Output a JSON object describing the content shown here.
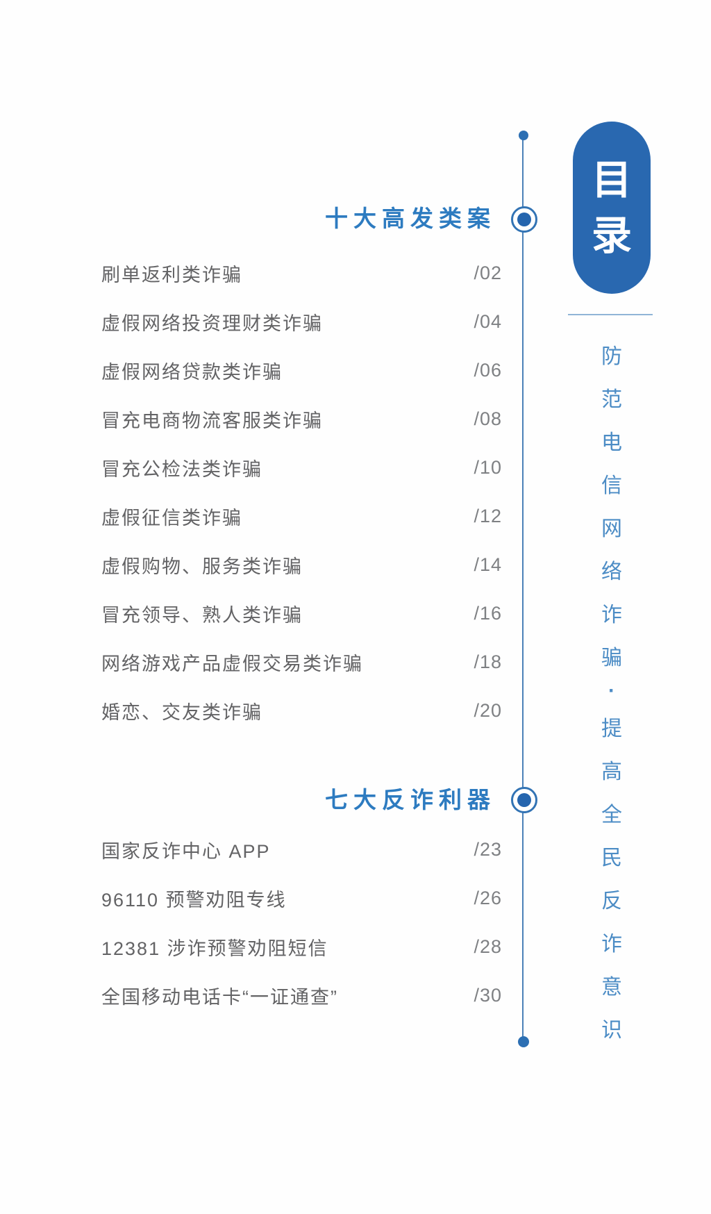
{
  "page_title": "目录",
  "badge": {
    "chars": [
      "目",
      "录"
    ]
  },
  "slogan": {
    "text": "防范电信网络诈骗·提高全民反诈意识"
  },
  "sections": [
    {
      "title": "十大高发类案",
      "items": [
        {
          "title": "刷单返利类诈骗",
          "page": "/02"
        },
        {
          "title": "虚假网络投资理财类诈骗",
          "page": "/04"
        },
        {
          "title": "虚假网络贷款类诈骗",
          "page": "/06"
        },
        {
          "title": "冒充电商物流客服类诈骗",
          "page": "/08"
        },
        {
          "title": "冒充公检法类诈骗",
          "page": "/10"
        },
        {
          "title": "虚假征信类诈骗",
          "page": "/12"
        },
        {
          "title": "虚假购物、服务类诈骗",
          "page": "/14"
        },
        {
          "title": "冒充领导、熟人类诈骗",
          "page": "/16"
        },
        {
          "title": "网络游戏产品虚假交易类诈骗",
          "page": "/18"
        },
        {
          "title": "婚恋、交友类诈骗",
          "page": "/20"
        }
      ]
    },
    {
      "title": "七大反诈利器",
      "items": [
        {
          "title": "国家反诈中心 APP",
          "page": "/23"
        },
        {
          "title": "96110 预警劝阻专线",
          "page": "/26"
        },
        {
          "title": "12381 涉诈预警劝阻短信",
          "page": "/28"
        },
        {
          "title": "全国移动电话卡“一证通查”",
          "page": "/30"
        }
      ]
    }
  ],
  "colors": {
    "badge_blue": "#2968b0",
    "header_blue": "#2d7bc0",
    "timeline_blue": "#4a80b7",
    "slogan_blue": "#4c8cc5",
    "entry_gray": "#636365",
    "page_number_gray": "#7e8083"
  }
}
